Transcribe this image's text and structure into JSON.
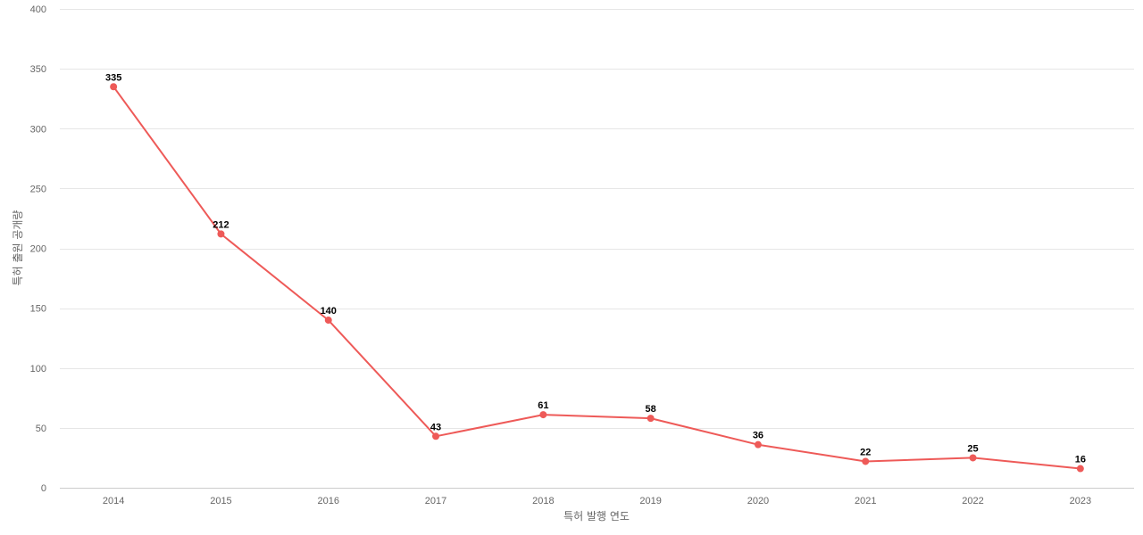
{
  "chart_data": {
    "type": "line",
    "title": "",
    "xlabel": "특허 발행 연도",
    "ylabel": "특허 출원 공개량",
    "categories": [
      "2014",
      "2015",
      "2016",
      "2017",
      "2018",
      "2019",
      "2020",
      "2021",
      "2022",
      "2023"
    ],
    "series": [
      {
        "values": [
          335,
          212,
          140,
          43,
          61,
          58,
          36,
          22,
          25,
          16
        ],
        "color": "#ee5a58"
      }
    ],
    "ylim": [
      0,
      400
    ],
    "yticks": [
      "0",
      "50",
      "100",
      "150",
      "200",
      "250",
      "300",
      "350",
      "400"
    ],
    "grid": true,
    "data_labels": true,
    "legend": "none"
  }
}
